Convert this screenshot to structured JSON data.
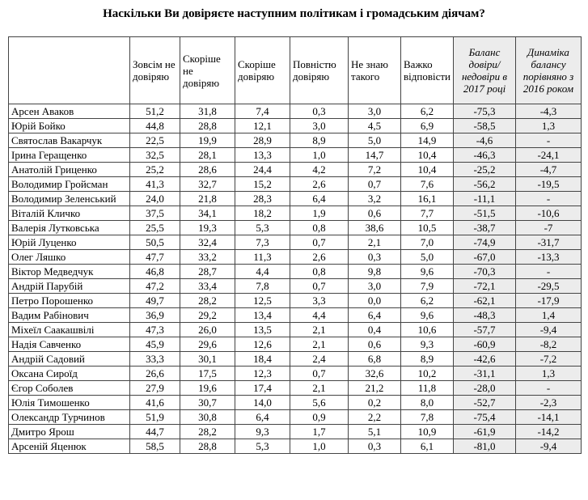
{
  "title": "Наскільки Ви довіряєте наступним політикам і громадським діячам?",
  "table": {
    "headers": [
      "Зовсім не довіряю",
      "Скоріше не довіряю",
      "Скоріше довіряю",
      "Повністю довіряю",
      "Не знаю такого",
      "Важко відповісти",
      "Баланс довіри/ недовіри в 2017 році",
      "Динаміка балансу порівняно з 2016 роком"
    ],
    "rows": [
      [
        "Арсен Аваков",
        "51,2",
        "31,8",
        "7,4",
        "0,3",
        "3,0",
        "6,2",
        "-75,3",
        "-4,3"
      ],
      [
        "Юрій Бойко",
        "44,8",
        "28,8",
        "12,1",
        "3,0",
        "4,5",
        "6,9",
        "-58,5",
        "1,3"
      ],
      [
        "Святослав Вакарчук",
        "22,5",
        "19,9",
        "28,9",
        "8,9",
        "5,0",
        "14,9",
        "-4,6",
        "-"
      ],
      [
        "Ірина Геращенко",
        "32,5",
        "28,1",
        "13,3",
        "1,0",
        "14,7",
        "10,4",
        "-46,3",
        "-24,1"
      ],
      [
        "Анатолій Гриценко",
        "25,2",
        "28,6",
        "24,4",
        "4,2",
        "7,2",
        "10,4",
        "-25,2",
        "-4,7"
      ],
      [
        "Володимир Гройсман",
        "41,3",
        "32,7",
        "15,2",
        "2,6",
        "0,7",
        "7,6",
        "-56,2",
        "-19,5"
      ],
      [
        "Володимир Зеленський",
        "24,0",
        "21,8",
        "28,3",
        "6,4",
        "3,2",
        "16,1",
        "-11,1",
        "-"
      ],
      [
        "Віталій Кличко",
        "37,5",
        "34,1",
        "18,2",
        "1,9",
        "0,6",
        "7,7",
        "-51,5",
        "-10,6"
      ],
      [
        "Валерія Лутковська",
        "25,5",
        "19,3",
        "5,3",
        "0,8",
        "38,6",
        "10,5",
        "-38,7",
        "-7"
      ],
      [
        "Юрій Луценко",
        "50,5",
        "32,4",
        "7,3",
        "0,7",
        "2,1",
        "7,0",
        "-74,9",
        "-31,7"
      ],
      [
        "Олег Ляшко",
        "47,7",
        "33,2",
        "11,3",
        "2,6",
        "0,3",
        "5,0",
        "-67,0",
        "-13,3"
      ],
      [
        "Віктор Медведчук",
        "46,8",
        "28,7",
        "4,4",
        "0,8",
        "9,8",
        "9,6",
        "-70,3",
        "-"
      ],
      [
        "Андрій Парубій",
        "47,2",
        "33,4",
        "7,8",
        "0,7",
        "3,0",
        "7,9",
        "-72,1",
        "-29,5"
      ],
      [
        "Петро Порошенко",
        "49,7",
        "28,2",
        "12,5",
        "3,3",
        "0,0",
        "6,2",
        "-62,1",
        "-17,9"
      ],
      [
        "Вадим Рабінович",
        "36,9",
        "29,2",
        "13,4",
        "4,4",
        "6,4",
        "9,6",
        "-48,3",
        "1,4"
      ],
      [
        "Міхеїл Саакашвілі",
        "47,3",
        "26,0",
        "13,5",
        "2,1",
        "0,4",
        "10,6",
        "-57,7",
        "-9,4"
      ],
      [
        "Надія Савченко",
        "45,9",
        "29,6",
        "12,6",
        "2,1",
        "0,6",
        "9,3",
        "-60,9",
        "-8,2"
      ],
      [
        "Андрій Садовий",
        "33,3",
        "30,1",
        "18,4",
        "2,4",
        "6,8",
        "8,9",
        "-42,6",
        "-7,2"
      ],
      [
        "Оксана Сироїд",
        "26,6",
        "17,5",
        "12,3",
        "0,7",
        "32,6",
        "10,2",
        "-31,1",
        "1,3"
      ],
      [
        "Єгор Соболев",
        "27,9",
        "19,6",
        "17,4",
        "2,1",
        "21,2",
        "11,8",
        "-28,0",
        "-"
      ],
      [
        "Юлія Тимошенко",
        "41,6",
        "30,7",
        "14,0",
        "5,6",
        "0,2",
        "8,0",
        "-52,7",
        "-2,3"
      ],
      [
        "Олександр Турчинов",
        "51,9",
        "30,8",
        "6,4",
        "0,9",
        "2,2",
        "7,8",
        "-75,4",
        "-14,1"
      ],
      [
        "Дмитро Ярош",
        "44,7",
        "28,2",
        "9,3",
        "1,7",
        "5,1",
        "10,9",
        "-61,9",
        "-14,2"
      ],
      [
        "Арсеній Яценюк",
        "58,5",
        "28,8",
        "5,3",
        "1,0",
        "0,3",
        "6,1",
        "-81,0",
        "-9,4"
      ]
    ]
  }
}
